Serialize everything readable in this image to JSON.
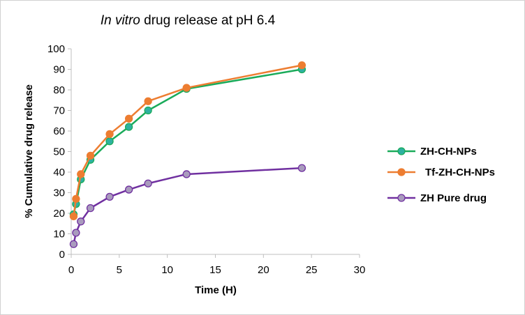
{
  "chart_data": {
    "type": "line",
    "title_italic": "In vitro",
    "title_rest": " drug release at pH 6.4",
    "xlabel": "Time (H)",
    "ylabel": "% Cumulative drug release",
    "xlim": [
      0,
      30
    ],
    "ylim": [
      0,
      100
    ],
    "xticks": [
      0,
      5,
      10,
      15,
      20,
      25,
      30
    ],
    "yticks": [
      0,
      10,
      20,
      30,
      40,
      50,
      60,
      70,
      80,
      90,
      100
    ],
    "grid": false,
    "legend_position": "right",
    "series": [
      {
        "name": "ZH-CH-NPs",
        "line_color": "#1aab5a",
        "marker_fill": "#2eb1a0",
        "marker_edge": "#1aab5a",
        "x": [
          0.25,
          0.5,
          1,
          2,
          4,
          6,
          8,
          12,
          24
        ],
        "y": [
          19.5,
          24.5,
          36.5,
          46,
          55,
          62,
          70,
          80.5,
          90
        ]
      },
      {
        "name": "Tf-ZH-CH-NPs",
        "line_color": "#ed7d31",
        "marker_fill": "#ed7d31",
        "marker_edge": "#ed7d31",
        "x": [
          0.25,
          0.5,
          1,
          2,
          4,
          6,
          8,
          12,
          24
        ],
        "y": [
          18.5,
          27,
          39,
          48,
          58.5,
          66,
          74.5,
          81,
          92
        ]
      },
      {
        "name": "ZH Pure drug",
        "line_color": "#7030a0",
        "marker_fill": "#a99bbd",
        "marker_edge": "#7030a0",
        "x": [
          0.25,
          0.5,
          1,
          2,
          4,
          6,
          8,
          12,
          24
        ],
        "y": [
          5,
          10.5,
          16,
          22.5,
          28,
          31.5,
          34.5,
          39,
          42
        ]
      }
    ]
  }
}
